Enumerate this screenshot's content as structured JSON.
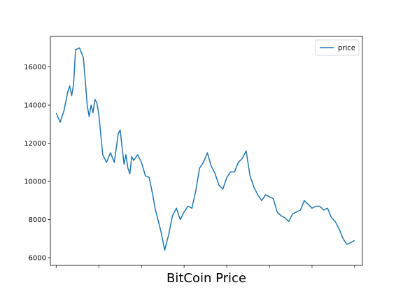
{
  "chart_data": {
    "type": "line",
    "title": "",
    "xlabel": "BitCoin Price",
    "ylabel": "",
    "x_tick_labels": [
      "",
      "",
      "",
      "",
      "",
      "",
      "",
      ""
    ],
    "yticks": [
      6000,
      8000,
      10000,
      12000,
      14000,
      16000
    ],
    "ylim": [
      5600,
      17600
    ],
    "xlim": [
      -30,
      1580
    ],
    "grid": false,
    "legend_position": "top-right",
    "colors": {
      "price": "#1f77b4",
      "axes": "#000000",
      "background": "#ffffff"
    },
    "series": [
      {
        "name": "price",
        "x": [
          0,
          20,
          40,
          60,
          70,
          80,
          90,
          100,
          120,
          140,
          150,
          160,
          170,
          180,
          190,
          200,
          210,
          220,
          240,
          260,
          280,
          300,
          320,
          330,
          340,
          350,
          360,
          370,
          380,
          390,
          400,
          420,
          440,
          460,
          480,
          500,
          510,
          520,
          540,
          560,
          580,
          600,
          620,
          640,
          660,
          680,
          700,
          720,
          740,
          760,
          780,
          800,
          820,
          840,
          860,
          880,
          900,
          920,
          940,
          960,
          980,
          1000,
          1020,
          1040,
          1060,
          1080,
          1100,
          1120,
          1140,
          1160,
          1180,
          1200,
          1220,
          1240,
          1260,
          1280,
          1300,
          1320,
          1340,
          1360,
          1380,
          1400,
          1420,
          1440,
          1460,
          1480,
          1500,
          1520,
          1540
        ],
        "values": [
          13600,
          13100,
          13700,
          14700,
          15000,
          14500,
          15100,
          16900,
          17000,
          16500,
          15300,
          14000,
          13400,
          14000,
          13600,
          14300,
          14100,
          13500,
          11400,
          11000,
          11500,
          11000,
          12500,
          12700,
          11800,
          10900,
          11400,
          10700,
          10400,
          11300,
          11100,
          11400,
          11000,
          10300,
          10200,
          9200,
          8600,
          8200,
          7400,
          6400,
          7200,
          8200,
          8600,
          8000,
          8400,
          8700,
          8600,
          9500,
          10700,
          11000,
          11500,
          10800,
          10400,
          9800,
          9600,
          10200,
          10500,
          10500,
          11000,
          11200,
          11600,
          10300,
          9700,
          9300,
          9000,
          9300,
          9200,
          9100,
          8400,
          8200,
          8100,
          7900,
          8300,
          8400,
          8500,
          9000,
          8800,
          8600,
          8700,
          8700,
          8500,
          8600,
          8100,
          7900,
          7500,
          7000,
          6700,
          6800,
          6900
        ]
      }
    ]
  }
}
